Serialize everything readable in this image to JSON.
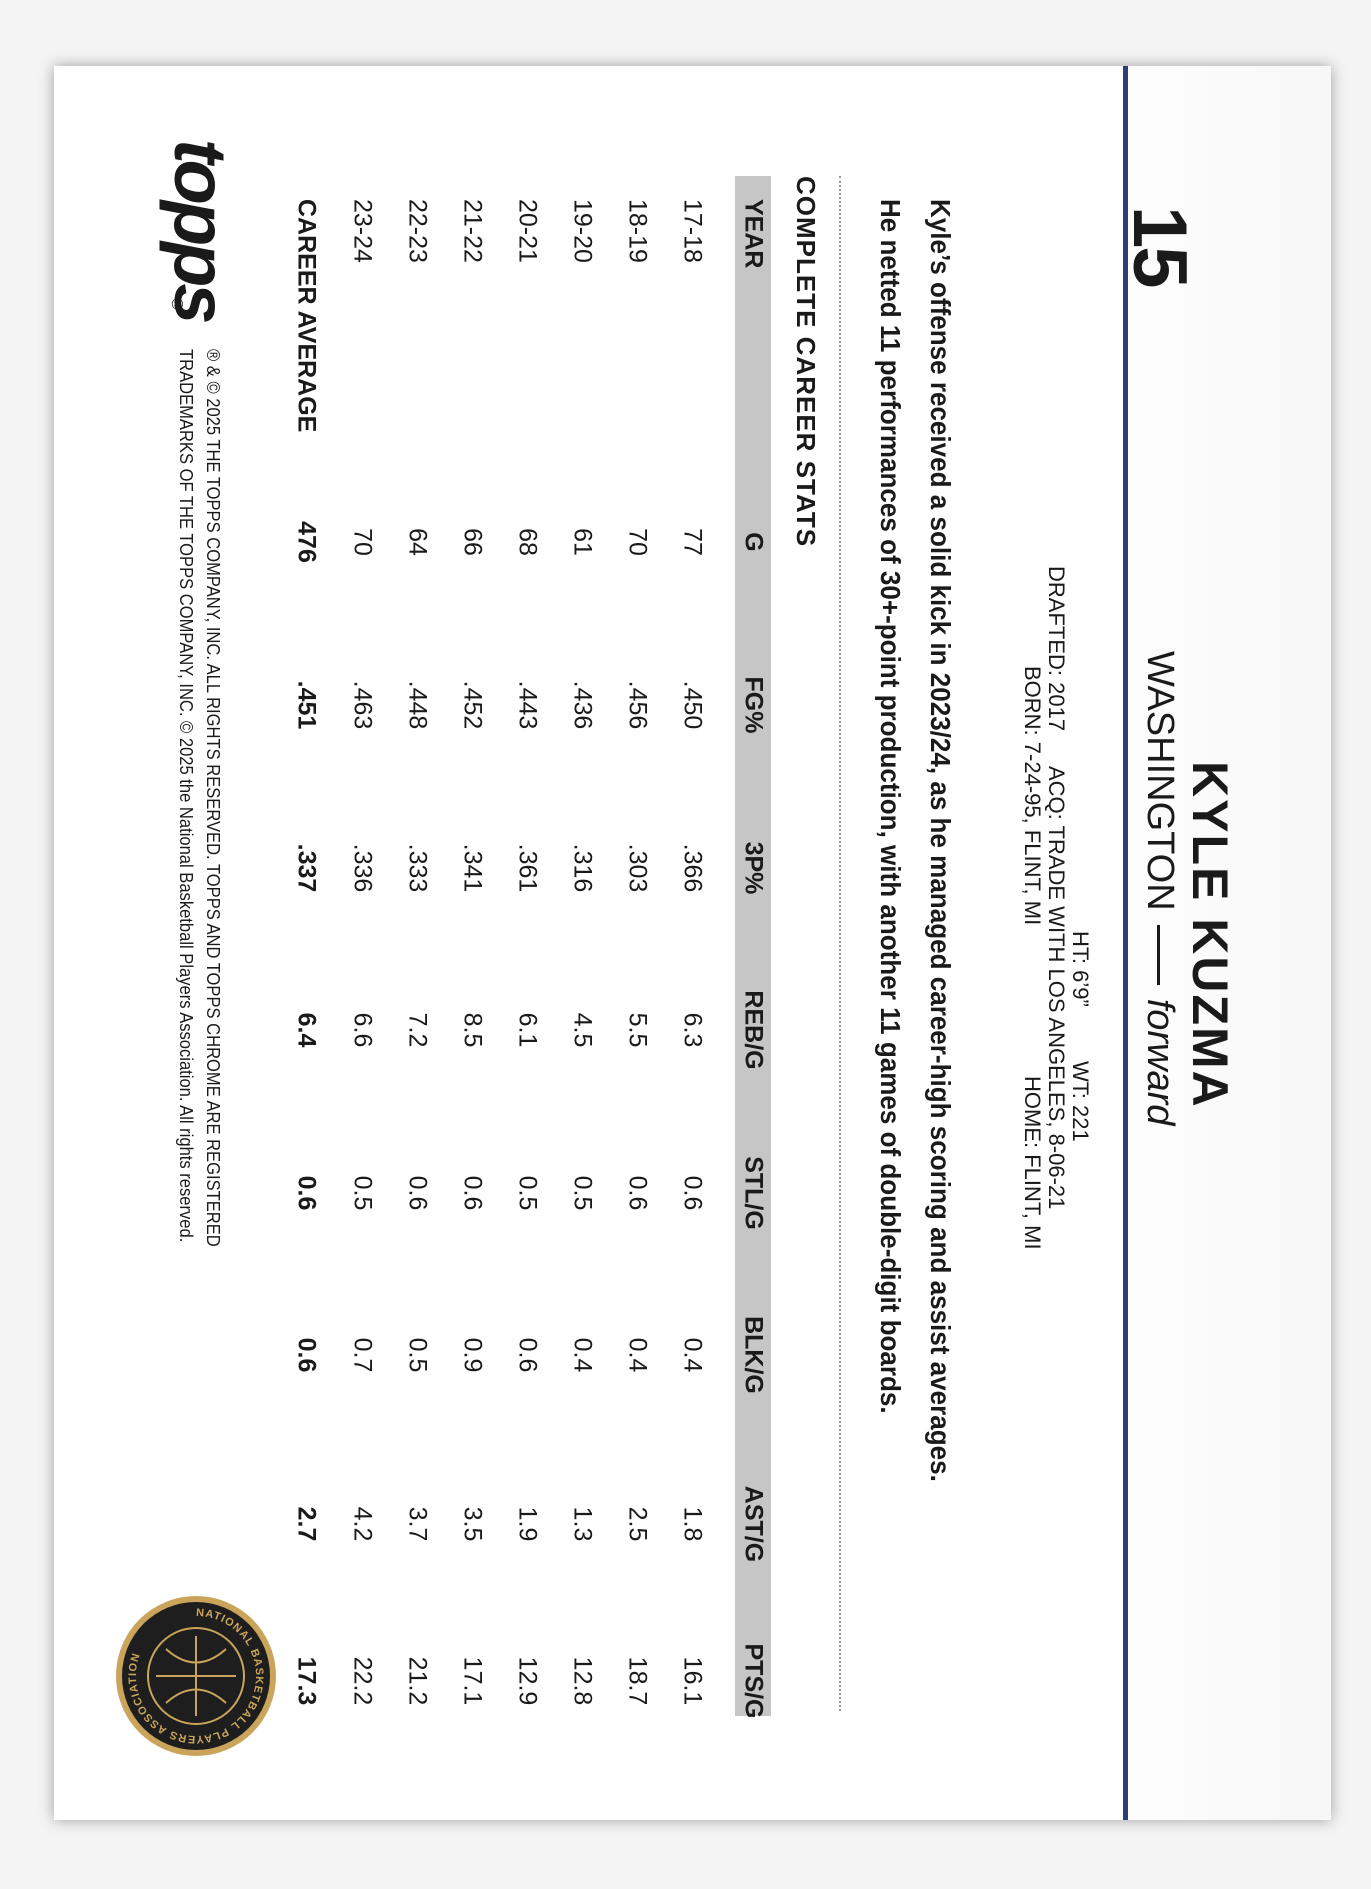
{
  "card": {
    "number": "15",
    "name": "KYLE KUZMA",
    "team": "WASHINGTON",
    "position": "forward",
    "bio": {
      "height": "HT: 6’9”",
      "weight": "WT: 221",
      "drafted": "DRAFTED: 2017",
      "acquired": "ACQ: TRADE WITH LOS ANGELES, 8-06-21",
      "born": "BORN: 7-24-95, FLINT, MI",
      "home": "HOME: FLINT, MI"
    },
    "blurb": [
      "Kyle’s offense received a solid kick in 2023/24, as he managed career-high scoring and assist averages.",
      "He netted 11 performances of 30+-point production, with another 11 games of double-digit boards."
    ],
    "stats": {
      "title": "COMPLETE CAREER STATS",
      "columns": [
        "YEAR",
        "G",
        "FG%",
        "3P%",
        "REB/G",
        "STL/G",
        "BLK/G",
        "AST/G",
        "PTS/G"
      ],
      "rows": [
        [
          "17-18",
          "77",
          ".450",
          ".366",
          "6.3",
          "0.6",
          "0.4",
          "1.8",
          "16.1"
        ],
        [
          "18-19",
          "70",
          ".456",
          ".303",
          "5.5",
          "0.6",
          "0.4",
          "2.5",
          "18.7"
        ],
        [
          "19-20",
          "61",
          ".436",
          ".316",
          "4.5",
          "0.5",
          "0.4",
          "1.3",
          "12.8"
        ],
        [
          "20-21",
          "68",
          ".443",
          ".361",
          "6.1",
          "0.5",
          "0.6",
          "1.9",
          "12.9"
        ],
        [
          "21-22",
          "66",
          ".452",
          ".341",
          "8.5",
          "0.6",
          "0.9",
          "3.5",
          "17.1"
        ],
        [
          "22-23",
          "64",
          ".448",
          ".333",
          "7.2",
          "0.6",
          "0.5",
          "3.7",
          "21.2"
        ],
        [
          "23-24",
          "70",
          ".463",
          ".336",
          "6.6",
          "0.5",
          "0.7",
          "4.2",
          "22.2"
        ]
      ],
      "career": [
        "CAREER AVERAGE",
        "476",
        ".451",
        ".337",
        "6.4",
        "0.6",
        "0.6",
        "2.7",
        "17.3"
      ]
    },
    "logo": "topps",
    "logo_mark": "®",
    "copyright": [
      "® & © 2025 THE TOPPS COMPANY, INC. ALL RIGHTS RESERVED. TOPPS AND TOPPS CHROME ARE REGISTERED",
      "TRADEMARKS OF THE TOPPS COMPANY, INC. © 2025 the National Basketball Players Association. All rights reserved."
    ],
    "seal": "NATIONAL BASKETBALL PLAYERS ASSOCIATION"
  }
}
